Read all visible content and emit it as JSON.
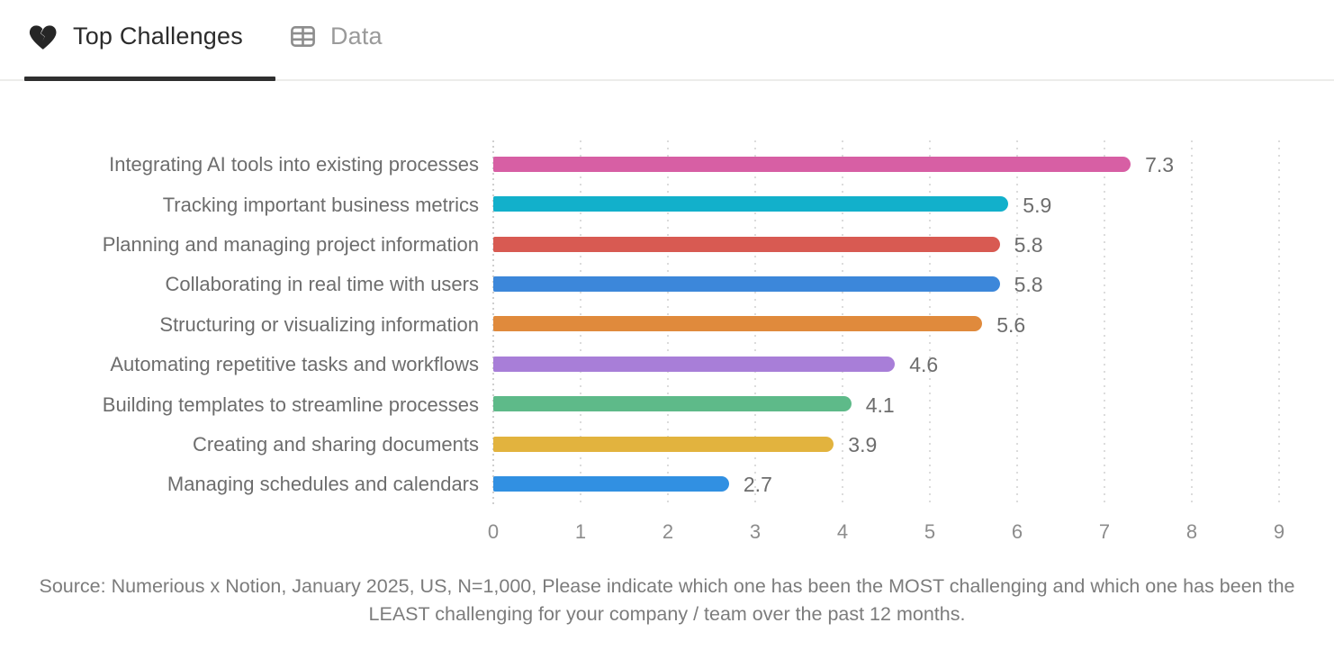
{
  "tabs": [
    {
      "label": "Top Challenges",
      "icon": "broken-heart-icon",
      "active": true
    },
    {
      "label": "Data",
      "icon": "table-icon",
      "active": false
    }
  ],
  "chart_data": {
    "type": "bar",
    "orientation": "horizontal",
    "title": "Top Challenges",
    "categories": [
      "Integrating AI tools into existing processes",
      "Tracking important business metrics",
      "Planning and managing project information",
      "Collaborating in real time with users",
      "Structuring or visualizing information",
      "Automating repetitive tasks and workflows",
      "Building templates to streamline processes",
      "Creating and sharing documents",
      "Managing schedules and calendars"
    ],
    "values": [
      7.3,
      5.9,
      5.8,
      5.8,
      5.6,
      4.6,
      4.1,
      3.9,
      2.7
    ],
    "bar_colors": [
      "#d75fa4",
      "#12b0cb",
      "#d85a52",
      "#3c87da",
      "#e08a3c",
      "#a87ed8",
      "#5eba89",
      "#e2b33e",
      "#3190e2"
    ],
    "value_labels": [
      "7.3",
      "5.9",
      "5.8",
      "5.8",
      "5.6",
      "4.6",
      "4.1",
      "3.9",
      "2.7"
    ],
    "x_ticks": [
      0,
      1,
      2,
      3,
      4,
      5,
      6,
      7,
      8,
      9
    ],
    "xlim": [
      0,
      9
    ],
    "grid": "dotted-vertical",
    "legend": "none"
  },
  "source_note": "Source: Numerious x Notion, January 2025, US, N=1,000, Please indicate which one has been the MOST challenging and which one has been the LEAST challenging for your company /  team over the past 12 months.",
  "colors": {
    "active_tab_text": "#2b2b2b",
    "inactive_tab_text": "#9a9a9a",
    "tab_underline": "#2f2f2f",
    "gridline": "#dcdcdc",
    "category_text": "#6d6d6d",
    "value_text": "#6d6d6d",
    "tick_text": "#8c8c8c",
    "source_text": "#7c7c7c"
  }
}
